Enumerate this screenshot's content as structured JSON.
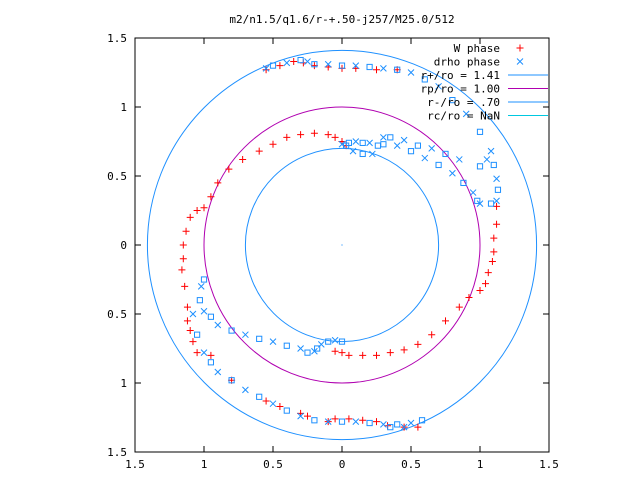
{
  "chart_data": {
    "type": "scatter",
    "title": "m2/n1.5/q1.6/r-+.50-j257/M25.0/512",
    "xlabel": "",
    "ylabel": "",
    "xlim": [
      -1.5,
      1.5
    ],
    "ylim": [
      -1.5,
      1.5
    ],
    "x_ticks": [
      -1.5,
      -1,
      -0.5,
      0,
      0.5,
      1,
      1.5
    ],
    "x_tick_labels": [
      "1.5",
      "1",
      "0.5",
      "0",
      "0.5",
      "1",
      "1.5"
    ],
    "y_ticks": [
      1.5,
      1,
      0.5,
      0,
      -0.5,
      -1,
      -1.5
    ],
    "y_tick_labels": [
      "1.5",
      "1",
      "0.5",
      "0",
      "0.5",
      "1",
      "1.5"
    ],
    "grid": false,
    "legend_position": "top-right",
    "series": [
      {
        "name": "W phase",
        "kind": "points",
        "marker": "plus",
        "color": "#ff0000",
        "points": [
          [
            -1.15,
            -0.1
          ],
          [
            -1.16,
            -0.18
          ],
          [
            -1.14,
            -0.3
          ],
          [
            -1.12,
            -0.45
          ],
          [
            -1.12,
            -0.55
          ],
          [
            -1.1,
            -0.62
          ],
          [
            -1.08,
            -0.7
          ],
          [
            -1.05,
            -0.78
          ],
          [
            -1.15,
            0.0
          ],
          [
            -1.13,
            0.1
          ],
          [
            -1.1,
            0.2
          ],
          [
            -1.05,
            0.25
          ],
          [
            -1.0,
            0.27
          ],
          [
            -0.95,
            0.35
          ],
          [
            -0.9,
            0.45
          ],
          [
            -0.82,
            0.55
          ],
          [
            -0.72,
            0.62
          ],
          [
            -0.6,
            0.68
          ],
          [
            -0.5,
            0.73
          ],
          [
            -0.4,
            0.78
          ],
          [
            -0.3,
            0.8
          ],
          [
            -0.2,
            0.81
          ],
          [
            -0.1,
            0.8
          ],
          [
            -0.05,
            0.78
          ],
          [
            0.0,
            0.75
          ],
          [
            0.03,
            0.72
          ],
          [
            1.12,
            0.28
          ],
          [
            1.12,
            0.15
          ],
          [
            1.1,
            0.05
          ],
          [
            1.1,
            -0.05
          ],
          [
            1.09,
            -0.12
          ],
          [
            1.06,
            -0.2
          ],
          [
            1.04,
            -0.28
          ],
          [
            1.0,
            -0.33
          ],
          [
            0.92,
            -0.38
          ],
          [
            0.85,
            -0.45
          ],
          [
            0.75,
            -0.55
          ],
          [
            0.65,
            -0.65
          ],
          [
            0.55,
            -0.72
          ],
          [
            0.45,
            -0.76
          ],
          [
            0.35,
            -0.78
          ],
          [
            0.25,
            -0.8
          ],
          [
            0.15,
            -0.8
          ],
          [
            0.05,
            -0.8
          ],
          [
            0.0,
            -0.78
          ],
          [
            -0.05,
            -0.77
          ],
          [
            -0.55,
            1.27
          ],
          [
            -0.45,
            1.3
          ],
          [
            -0.35,
            1.33
          ],
          [
            -0.28,
            1.32
          ],
          [
            -0.2,
            1.3
          ],
          [
            -0.1,
            1.29
          ],
          [
            0.0,
            1.28
          ],
          [
            0.1,
            1.28
          ],
          [
            0.25,
            1.27
          ],
          [
            0.4,
            1.27
          ],
          [
            0.55,
            -1.32
          ],
          [
            0.45,
            -1.32
          ],
          [
            0.33,
            -1.31
          ],
          [
            0.25,
            -1.28
          ],
          [
            0.15,
            -1.27
          ],
          [
            0.05,
            -1.26
          ],
          [
            -0.05,
            -1.26
          ],
          [
            -0.1,
            -1.28
          ],
          [
            -0.25,
            -1.24
          ],
          [
            -0.3,
            -1.22
          ],
          [
            -0.45,
            -1.17
          ],
          [
            -0.55,
            -1.13
          ],
          [
            -0.8,
            -0.98
          ],
          [
            -0.95,
            -0.8
          ]
        ]
      },
      {
        "name": "drho phase",
        "kind": "points",
        "marker": "cross-square",
        "color": "#1e90ff",
        "points": [
          [
            -0.55,
            1.28
          ],
          [
            -0.5,
            1.3
          ],
          [
            -0.4,
            1.32
          ],
          [
            -0.3,
            1.34
          ],
          [
            -0.25,
            1.33
          ],
          [
            -0.2,
            1.31
          ],
          [
            -0.1,
            1.31
          ],
          [
            0.0,
            1.3
          ],
          [
            0.1,
            1.3
          ],
          [
            0.2,
            1.29
          ],
          [
            0.3,
            1.28
          ],
          [
            0.4,
            1.27
          ],
          [
            0.5,
            1.25
          ],
          [
            0.6,
            1.2
          ],
          [
            0.7,
            1.15
          ],
          [
            0.8,
            1.05
          ],
          [
            0.9,
            0.95
          ],
          [
            1.0,
            0.82
          ],
          [
            1.08,
            0.68
          ],
          [
            1.1,
            0.58
          ],
          [
            1.12,
            0.48
          ],
          [
            1.13,
            0.4
          ],
          [
            1.12,
            0.32
          ],
          [
            1.08,
            0.3
          ],
          [
            1.0,
            0.3
          ],
          [
            0.98,
            0.32
          ],
          [
            0.95,
            0.38
          ],
          [
            0.88,
            0.45
          ],
          [
            0.8,
            0.52
          ],
          [
            0.7,
            0.58
          ],
          [
            0.6,
            0.63
          ],
          [
            0.5,
            0.68
          ],
          [
            0.4,
            0.72
          ],
          [
            0.3,
            0.73
          ],
          [
            0.2,
            0.74
          ],
          [
            0.15,
            0.74
          ],
          [
            0.1,
            0.75
          ],
          [
            0.05,
            0.74
          ],
          [
            0.0,
            0.73
          ],
          [
            0.03,
            0.72
          ],
          [
            0.08,
            0.68
          ],
          [
            0.15,
            0.66
          ],
          [
            0.22,
            0.66
          ],
          [
            0.26,
            0.72
          ],
          [
            0.3,
            0.78
          ],
          [
            0.35,
            0.78
          ],
          [
            0.45,
            0.76
          ],
          [
            0.55,
            0.72
          ],
          [
            0.65,
            0.7
          ],
          [
            0.75,
            0.66
          ],
          [
            0.85,
            0.62
          ],
          [
            1.0,
            0.57
          ],
          [
            1.05,
            0.62
          ],
          [
            -1.0,
            -0.25
          ],
          [
            -1.02,
            -0.3
          ],
          [
            -1.03,
            -0.4
          ],
          [
            -1.0,
            -0.48
          ],
          [
            -0.95,
            -0.52
          ],
          [
            -0.9,
            -0.58
          ],
          [
            -0.8,
            -0.62
          ],
          [
            -0.7,
            -0.65
          ],
          [
            -0.6,
            -0.68
          ],
          [
            -0.5,
            -0.7
          ],
          [
            -0.4,
            -0.73
          ],
          [
            -0.3,
            -0.75
          ],
          [
            -0.25,
            -0.78
          ],
          [
            -0.2,
            -0.77
          ],
          [
            -0.18,
            -0.75
          ],
          [
            -0.15,
            -0.72
          ],
          [
            -0.1,
            -0.7
          ],
          [
            -0.05,
            -0.69
          ],
          [
            0.0,
            -0.7
          ],
          [
            -1.08,
            -0.5
          ],
          [
            -1.05,
            -0.65
          ],
          [
            -1.0,
            -0.78
          ],
          [
            -0.95,
            -0.85
          ],
          [
            -0.9,
            -0.92
          ],
          [
            -0.8,
            -0.98
          ],
          [
            -0.7,
            -1.05
          ],
          [
            -0.6,
            -1.1
          ],
          [
            -0.5,
            -1.15
          ],
          [
            -0.4,
            -1.2
          ],
          [
            -0.3,
            -1.24
          ],
          [
            -0.2,
            -1.27
          ],
          [
            -0.1,
            -1.28
          ],
          [
            0.0,
            -1.28
          ],
          [
            0.1,
            -1.28
          ],
          [
            0.2,
            -1.29
          ],
          [
            0.3,
            -1.3
          ],
          [
            0.4,
            -1.3
          ],
          [
            0.5,
            -1.29
          ],
          [
            0.58,
            -1.27
          ],
          [
            0.45,
            -1.32
          ],
          [
            0.35,
            -1.32
          ]
        ]
      },
      {
        "name": "r+/ro = 1.41",
        "kind": "circle",
        "radius": 1.41,
        "color": "#1e90ff"
      },
      {
        "name": "rp/ro = 1.00",
        "kind": "circle",
        "radius": 1.0,
        "color": "#b000b0"
      },
      {
        "name": "r-/ro = .70",
        "kind": "circle",
        "radius": 0.7,
        "color": "#1e90ff"
      },
      {
        "name": "rc/ro = NaN",
        "kind": "circle",
        "radius": null,
        "color": "#00c8e0"
      }
    ]
  }
}
